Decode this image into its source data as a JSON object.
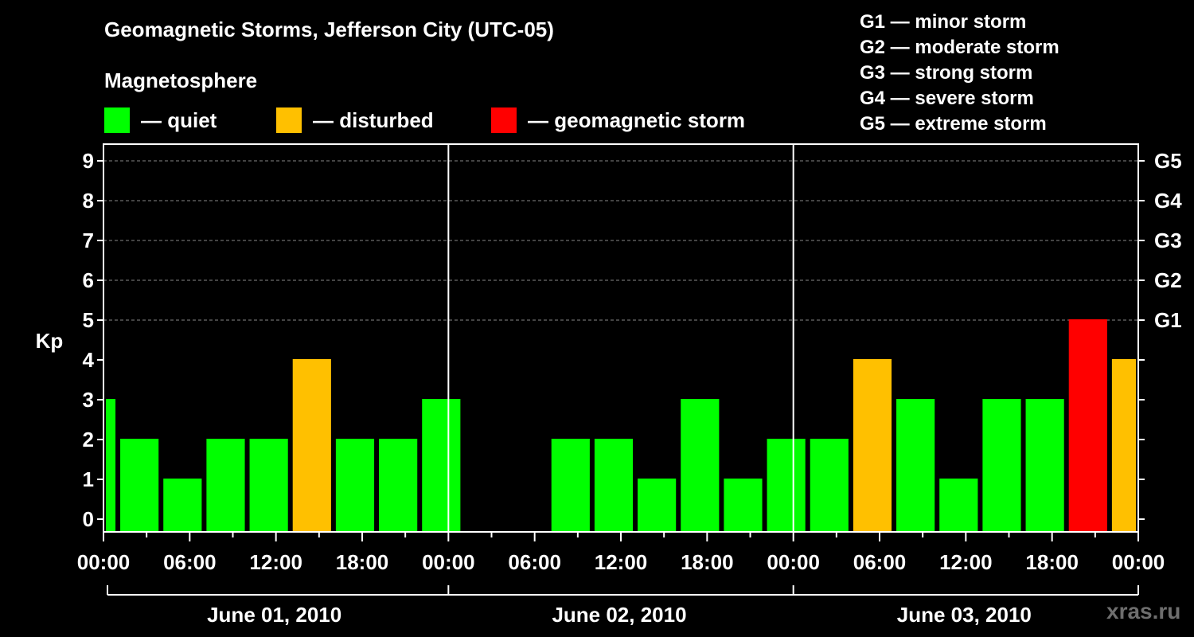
{
  "chart_data": {
    "type": "bar",
    "title": "Geomagnetic Storms, Jefferson City (UTC-05)",
    "ylabel": "Kp",
    "ylim": [
      0,
      9
    ],
    "y_ticks": [
      "0",
      "1",
      "2",
      "3",
      "4",
      "5",
      "6",
      "7",
      "8",
      "9"
    ],
    "right_ticks": [
      {
        "kp": 5,
        "label": "G1"
      },
      {
        "kp": 6,
        "label": "G2"
      },
      {
        "kp": 7,
        "label": "G3"
      },
      {
        "kp": 8,
        "label": "G4"
      },
      {
        "kp": 9,
        "label": "G5"
      }
    ],
    "x_tick_labels": [
      "00:00",
      "06:00",
      "12:00",
      "18:00",
      "00:00",
      "06:00",
      "12:00",
      "18:00",
      "00:00",
      "06:00",
      "12:00",
      "18:00",
      "00:00"
    ],
    "days": [
      "June 01, 2010",
      "June 02, 2010",
      "June 03, 2010"
    ],
    "hours_total": 72,
    "bars": [
      {
        "start_hour": 0,
        "end_hour": 1,
        "kp": 3
      },
      {
        "start_hour": 1,
        "end_hour": 4,
        "kp": 2
      },
      {
        "start_hour": 4,
        "end_hour": 7,
        "kp": 1
      },
      {
        "start_hour": 7,
        "end_hour": 10,
        "kp": 2
      },
      {
        "start_hour": 10,
        "end_hour": 13,
        "kp": 2
      },
      {
        "start_hour": 13,
        "end_hour": 16,
        "kp": 4
      },
      {
        "start_hour": 16,
        "end_hour": 19,
        "kp": 2
      },
      {
        "start_hour": 19,
        "end_hour": 22,
        "kp": 2
      },
      {
        "start_hour": 22,
        "end_hour": 25,
        "kp": 3
      },
      {
        "start_hour": 31,
        "end_hour": 34,
        "kp": 2
      },
      {
        "start_hour": 34,
        "end_hour": 37,
        "kp": 2
      },
      {
        "start_hour": 37,
        "end_hour": 40,
        "kp": 1
      },
      {
        "start_hour": 40,
        "end_hour": 43,
        "kp": 3
      },
      {
        "start_hour": 43,
        "end_hour": 46,
        "kp": 1
      },
      {
        "start_hour": 46,
        "end_hour": 49,
        "kp": 2
      },
      {
        "start_hour": 49,
        "end_hour": 52,
        "kp": 2
      },
      {
        "start_hour": 52,
        "end_hour": 55,
        "kp": 4
      },
      {
        "start_hour": 55,
        "end_hour": 58,
        "kp": 3
      },
      {
        "start_hour": 58,
        "end_hour": 61,
        "kp": 1
      },
      {
        "start_hour": 61,
        "end_hour": 64,
        "kp": 3
      },
      {
        "start_hour": 64,
        "end_hour": 67,
        "kp": 3
      },
      {
        "start_hour": 67,
        "end_hour": 70,
        "kp": 5
      },
      {
        "start_hour": 70,
        "end_hour": 72,
        "kp": 4
      }
    ],
    "colors": {
      "quiet": "#00ff00",
      "disturbed": "#ffc000",
      "storm": "#ff0000"
    },
    "grid": true,
    "legend_position": "top"
  },
  "magnetosphere": {
    "label": "Magnetosphere",
    "items": [
      {
        "text": "— quiet",
        "color": "#00ff00"
      },
      {
        "text": "— disturbed",
        "color": "#ffc000"
      },
      {
        "text": "— geomagnetic storm",
        "color": "#ff0000"
      }
    ]
  },
  "storm_scale": [
    "G1 — minor storm",
    "G2 — moderate storm",
    "G3 — strong storm",
    "G4 — severe storm",
    "G5 — extreme storm"
  ],
  "watermark": "xras.ru"
}
